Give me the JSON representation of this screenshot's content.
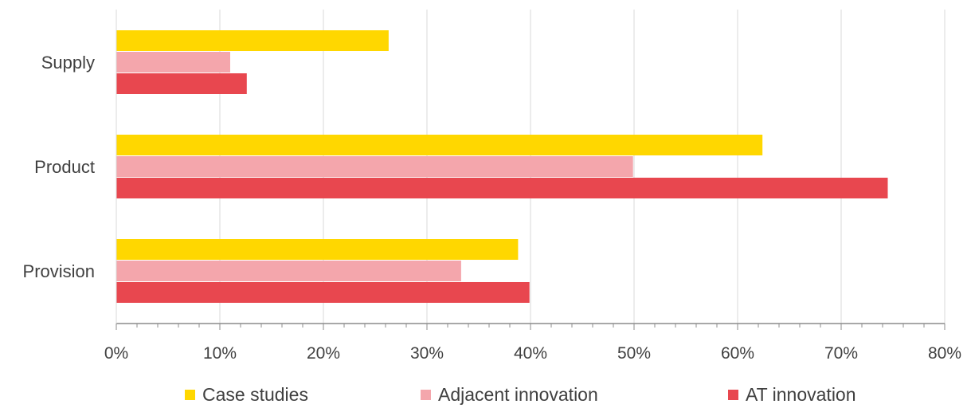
{
  "chart_data": {
    "type": "bar",
    "orientation": "horizontal",
    "categories": [
      "Supply",
      "Product",
      "Provision"
    ],
    "series": [
      {
        "name": "Case studies",
        "values": [
          26.3,
          62.4,
          38.8
        ],
        "color": "#FFD700"
      },
      {
        "name": "Adjacent innovation",
        "values": [
          11.0,
          49.9,
          33.3
        ],
        "color": "#F4A6AC"
      },
      {
        "name": "AT innovation",
        "values": [
          12.6,
          74.5,
          39.9
        ],
        "color": "#E8474F"
      }
    ],
    "x_ticks": [
      "0%",
      "10%",
      "20%",
      "30%",
      "40%",
      "50%",
      "60%",
      "70%",
      "80%"
    ],
    "xlim": [
      0,
      80
    ],
    "grid": "vertical",
    "legend_position": "bottom"
  }
}
